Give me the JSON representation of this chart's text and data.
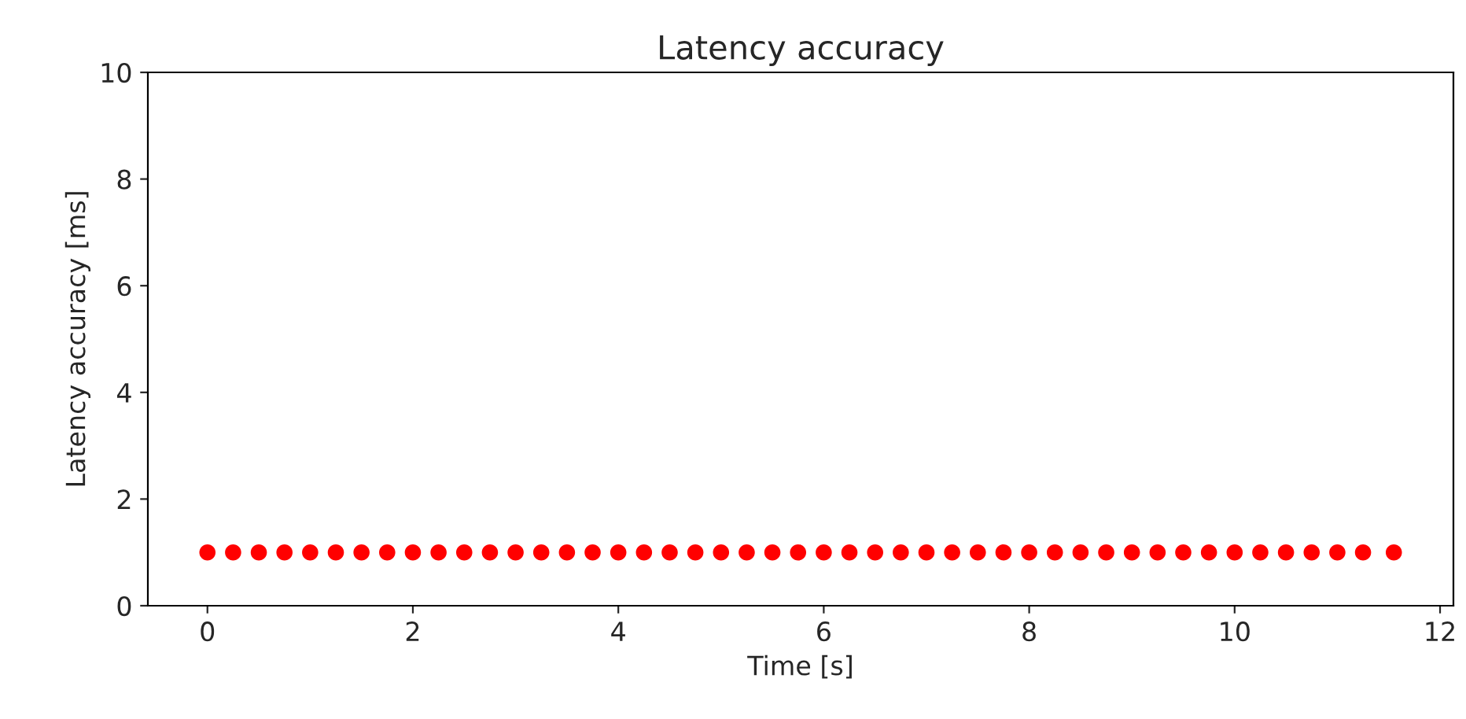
{
  "chart_data": {
    "type": "scatter",
    "title": "Latency accuracy",
    "xlabel": "Time [s]",
    "ylabel": "Latency accuracy [ms]",
    "x": [
      0,
      0.25,
      0.5,
      0.75,
      1,
      1.25,
      1.5,
      1.75,
      2,
      2.25,
      2.5,
      2.75,
      3,
      3.25,
      3.5,
      3.75,
      4,
      4.25,
      4.5,
      4.75,
      5,
      5.25,
      5.5,
      5.75,
      6,
      6.25,
      6.5,
      6.75,
      7,
      7.25,
      7.5,
      7.75,
      8,
      8.25,
      8.5,
      8.75,
      9,
      9.25,
      9.5,
      9.75,
      10,
      10.25,
      10.5,
      10.75,
      11,
      11.25,
      11.55
    ],
    "series": [
      {
        "color": "#ff0000",
        "values": [
          1,
          1,
          1,
          1,
          1,
          1,
          1,
          1,
          1,
          1,
          1,
          1,
          1,
          1,
          1,
          1,
          1,
          1,
          1,
          1,
          1,
          1,
          1,
          1,
          1,
          1,
          1,
          1,
          1,
          1,
          1,
          1,
          1,
          1,
          1,
          1,
          1,
          1,
          1,
          1,
          1,
          1,
          1,
          1,
          1,
          1,
          1
        ]
      }
    ],
    "xlim": [
      -0.58,
      12.13
    ],
    "xticks": [
      0,
      2,
      4,
      6,
      8,
      10,
      12
    ],
    "ylim": [
      0,
      10
    ],
    "yticks": [
      0,
      2,
      4,
      6,
      8,
      10
    ],
    "marker": "circle",
    "grid": false,
    "legend": false
  }
}
